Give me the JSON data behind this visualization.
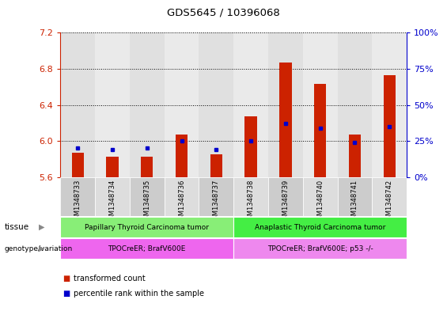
{
  "title": "GDS5645 / 10396068",
  "samples": [
    "GSM1348733",
    "GSM1348734",
    "GSM1348735",
    "GSM1348736",
    "GSM1348737",
    "GSM1348738",
    "GSM1348739",
    "GSM1348740",
    "GSM1348741",
    "GSM1348742"
  ],
  "transformed_count": [
    5.87,
    5.83,
    5.83,
    6.07,
    5.85,
    6.27,
    6.87,
    6.63,
    6.07,
    6.73
  ],
  "percentile_rank": [
    20,
    19,
    20,
    25,
    19,
    25,
    37,
    34,
    24,
    35
  ],
  "ylim_left": [
    5.6,
    7.2
  ],
  "ylim_right": [
    0,
    100
  ],
  "yticks_left": [
    5.6,
    6.0,
    6.4,
    6.8,
    7.2
  ],
  "yticks_right": [
    0,
    25,
    50,
    75,
    100
  ],
  "bar_color": "#cc2200",
  "dot_color": "#0000cc",
  "tissue_groups": [
    {
      "label": "Papillary Thyroid Carcinoma tumor",
      "start": 0,
      "end": 5,
      "color": "#88ee77"
    },
    {
      "label": "Anaplastic Thyroid Carcinoma tumor",
      "start": 5,
      "end": 10,
      "color": "#44ee44"
    }
  ],
  "genotype_groups": [
    {
      "label": "TPOCreER; BrafV600E",
      "start": 0,
      "end": 5,
      "color": "#ee66ee"
    },
    {
      "label": "TPOCreER; BrafV600E; p53 -/-",
      "start": 5,
      "end": 10,
      "color": "#ee88ee"
    }
  ],
  "tissue_label": "tissue",
  "genotype_label": "genotype/variation",
  "legend_items": [
    {
      "label": "transformed count",
      "color": "#cc2200"
    },
    {
      "label": "percentile rank within the sample",
      "color": "#0000cc"
    }
  ],
  "bar_width": 0.35,
  "base_value": 5.6,
  "col_bg_even": "#cccccc",
  "col_bg_odd": "#dddddd"
}
